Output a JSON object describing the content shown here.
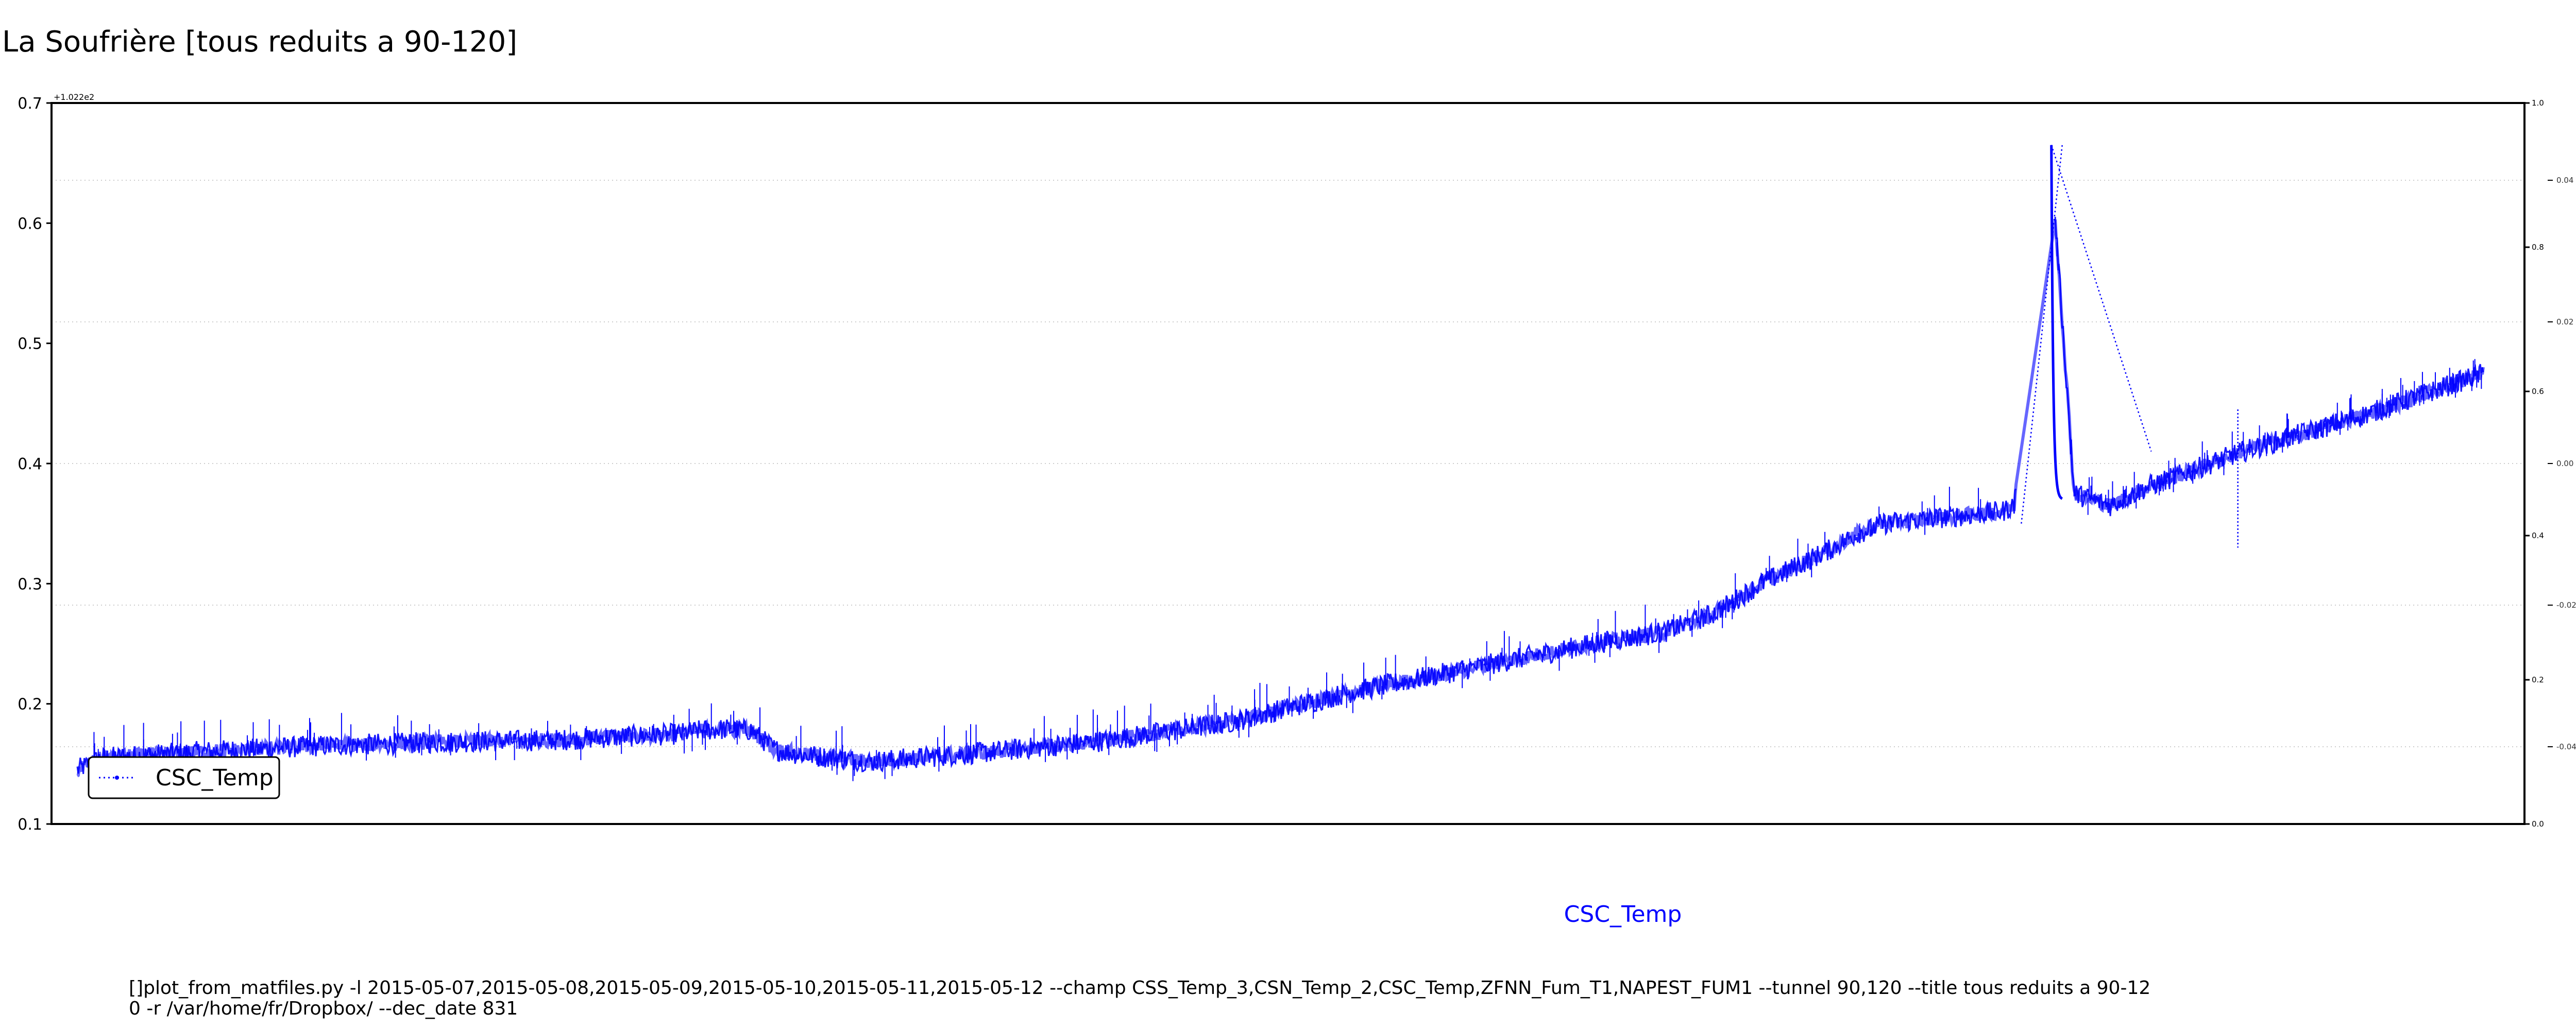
{
  "chart_data": {
    "type": "line",
    "title": "La Soufrière [tous reduits a 90-120]",
    "offset_label": "+1.022e2",
    "xlabel": "CSC_Temp",
    "ylabel": "",
    "ylim": [
      0.1,
      0.7
    ],
    "yticks": [
      "0.1",
      "0.2",
      "0.3",
      "0.4",
      "0.5",
      "0.6",
      "0.7"
    ],
    "right_axis_outer": {
      "ylim": [
        0.0,
        1.0
      ],
      "ticks": [
        "0.0",
        "0.2",
        "0.4",
        "0.6",
        "0.8",
        "1.0"
      ]
    },
    "right_axis_inner": {
      "ticks": [
        "-0.04",
        "-0.02",
        "0.00",
        "0.02",
        "0.04"
      ]
    },
    "grid": true,
    "legend_position": "lower-left",
    "series": [
      {
        "name": "CSC_Temp",
        "color": "#0000ff",
        "style": "dotted line with point markers",
        "x": [
          0,
          0.01,
          0.05,
          0.1,
          0.15,
          0.2,
          0.25,
          0.26,
          0.27,
          0.28,
          0.29,
          0.3,
          0.33,
          0.38,
          0.43,
          0.48,
          0.53,
          0.58,
          0.63,
          0.66,
          0.68,
          0.7,
          0.72,
          0.73,
          0.74,
          0.745,
          0.75,
          0.8,
          0.805,
          0.82,
          0.83,
          0.845,
          0.85,
          0.86,
          0.9,
          0.95,
          1.0
        ],
        "y": [
          0.145,
          0.155,
          0.16,
          0.165,
          0.168,
          0.17,
          0.175,
          0.178,
          0.179,
          0.178,
          0.162,
          0.158,
          0.152,
          0.16,
          0.17,
          0.185,
          0.21,
          0.23,
          0.25,
          0.26,
          0.275,
          0.3,
          0.32,
          0.33,
          0.342,
          0.345,
          0.35,
          0.36,
          0.365,
          0.665,
          0.375,
          0.365,
          0.37,
          0.38,
          0.41,
          0.44,
          0.475
        ]
      }
    ],
    "bridge_lines": [
      {
        "x": [
          0.808,
          0.825
        ],
        "y": [
          0.35,
          0.665
        ]
      },
      {
        "x": [
          0.8205,
          0.862
        ],
        "y": [
          0.665,
          0.41
        ]
      }
    ],
    "isolated_drop": {
      "x": [
        0.898,
        0.898
      ],
      "y": [
        0.445,
        0.33
      ]
    }
  },
  "footer": {
    "command_line_1": "[]plot_from_matfiles.py -l 2015-05-07,2015-05-08,2015-05-09,2015-05-10,2015-05-11,2015-05-12 --champ CSS_Temp_3,CSN_Temp_2,CSC_Temp,ZFNN_Fum_T1,NAPEST_FUM1 --tunnel 90,120 --title tous reduits a 90-12",
    "command_line_2": "0 -r /var/home/fr/Dropbox/ --dec_date 831"
  },
  "colors": {
    "series": "#0000ff",
    "axes": "#000000",
    "grid": "#cccccc",
    "background": "#ffffff"
  }
}
